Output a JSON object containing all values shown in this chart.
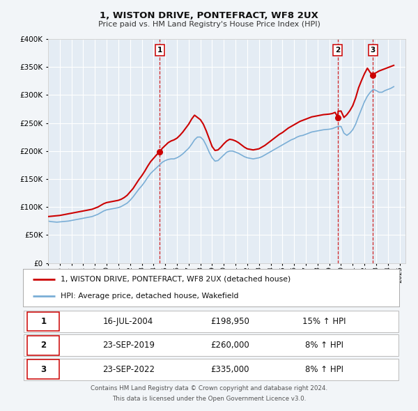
{
  "title": "1, WISTON DRIVE, PONTEFRACT, WF8 2UX",
  "subtitle": "Price paid vs. HM Land Registry's House Price Index (HPI)",
  "background_color": "#f2f5f8",
  "plot_bg_color": "#e4ecf4",
  "grid_color": "#ffffff",
  "ylim": [
    0,
    400000
  ],
  "yticks": [
    0,
    50000,
    100000,
    150000,
    200000,
    250000,
    300000,
    350000,
    400000
  ],
  "xlim_start": 1995.0,
  "xlim_end": 2025.5,
  "sale_color": "#cc0000",
  "hpi_color": "#7aaed6",
  "legend_label_sale": "1, WISTON DRIVE, PONTEFRACT, WF8 2UX (detached house)",
  "legend_label_hpi": "HPI: Average price, detached house, Wakefield",
  "transactions": [
    {
      "num": 1,
      "date_label": "16-JUL-2004",
      "price": 198950,
      "price_str": "£198,950",
      "pct": "15%",
      "x": 2004.54
    },
    {
      "num": 2,
      "date_label": "23-SEP-2019",
      "price": 260000,
      "price_str": "£260,000",
      "pct": "8%",
      "x": 2019.73
    },
    {
      "num": 3,
      "date_label": "23-SEP-2022",
      "price": 335000,
      "price_str": "£335,000",
      "pct": "8%",
      "x": 2022.73
    }
  ],
  "footer1": "Contains HM Land Registry data © Crown copyright and database right 2024.",
  "footer2": "This data is licensed under the Open Government Licence v3.0.",
  "hpi_data_x": [
    1995.0,
    1995.25,
    1995.5,
    1995.75,
    1996.0,
    1996.25,
    1996.5,
    1996.75,
    1997.0,
    1997.25,
    1997.5,
    1997.75,
    1998.0,
    1998.25,
    1998.5,
    1998.75,
    1999.0,
    1999.25,
    1999.5,
    1999.75,
    2000.0,
    2000.25,
    2000.5,
    2000.75,
    2001.0,
    2001.25,
    2001.5,
    2001.75,
    2002.0,
    2002.25,
    2002.5,
    2002.75,
    2003.0,
    2003.25,
    2003.5,
    2003.75,
    2004.0,
    2004.25,
    2004.5,
    2004.75,
    2005.0,
    2005.25,
    2005.5,
    2005.75,
    2006.0,
    2006.25,
    2006.5,
    2006.75,
    2007.0,
    2007.25,
    2007.5,
    2007.75,
    2008.0,
    2008.25,
    2008.5,
    2008.75,
    2009.0,
    2009.25,
    2009.5,
    2009.75,
    2010.0,
    2010.25,
    2010.5,
    2010.75,
    2011.0,
    2011.25,
    2011.5,
    2011.75,
    2012.0,
    2012.25,
    2012.5,
    2012.75,
    2013.0,
    2013.25,
    2013.5,
    2013.75,
    2014.0,
    2014.25,
    2014.5,
    2014.75,
    2015.0,
    2015.25,
    2015.5,
    2015.75,
    2016.0,
    2016.25,
    2016.5,
    2016.75,
    2017.0,
    2017.25,
    2017.5,
    2017.75,
    2018.0,
    2018.25,
    2018.5,
    2018.75,
    2019.0,
    2019.25,
    2019.5,
    2019.75,
    2020.0,
    2020.25,
    2020.5,
    2020.75,
    2021.0,
    2021.25,
    2021.5,
    2021.75,
    2022.0,
    2022.25,
    2022.5,
    2022.75,
    2023.0,
    2023.25,
    2023.5,
    2023.75,
    2024.0,
    2024.25,
    2024.5
  ],
  "hpi_data_y": [
    75000,
    74000,
    73500,
    73000,
    73500,
    74000,
    74500,
    75000,
    76000,
    77000,
    78000,
    79000,
    80000,
    81000,
    82000,
    83000,
    85000,
    87000,
    90000,
    93000,
    95000,
    96000,
    97000,
    98000,
    99000,
    101000,
    104000,
    107000,
    112000,
    118000,
    125000,
    132000,
    138000,
    145000,
    153000,
    160000,
    165000,
    170000,
    175000,
    180000,
    183000,
    185000,
    186000,
    186000,
    188000,
    191000,
    195000,
    200000,
    205000,
    212000,
    220000,
    225000,
    225000,
    220000,
    210000,
    198000,
    188000,
    182000,
    183000,
    188000,
    193000,
    198000,
    200000,
    200000,
    198000,
    196000,
    193000,
    190000,
    188000,
    187000,
    186000,
    187000,
    188000,
    190000,
    193000,
    196000,
    199000,
    202000,
    205000,
    208000,
    211000,
    214000,
    217000,
    220000,
    222000,
    225000,
    227000,
    228000,
    230000,
    232000,
    234000,
    235000,
    236000,
    237000,
    238000,
    238500,
    239000,
    240000,
    242000,
    244000,
    244000,
    232000,
    228000,
    232000,
    238000,
    248000,
    262000,
    275000,
    288000,
    298000,
    305000,
    310000,
    308000,
    305000,
    305000,
    308000,
    310000,
    312000,
    315000
  ],
  "sale_data_x": [
    1995.0,
    1995.25,
    1995.5,
    1995.75,
    1996.0,
    1996.25,
    1996.5,
    1996.75,
    1997.0,
    1997.25,
    1997.5,
    1997.75,
    1998.0,
    1998.25,
    1998.5,
    1998.75,
    1999.0,
    1999.25,
    1999.5,
    1999.75,
    2000.0,
    2000.25,
    2000.5,
    2000.75,
    2001.0,
    2001.25,
    2001.5,
    2001.75,
    2002.0,
    2002.25,
    2002.5,
    2002.75,
    2003.0,
    2003.25,
    2003.5,
    2003.75,
    2004.0,
    2004.25,
    2004.54,
    2004.75,
    2005.0,
    2005.25,
    2005.5,
    2005.75,
    2006.0,
    2006.25,
    2006.5,
    2006.75,
    2007.0,
    2007.25,
    2007.5,
    2007.75,
    2008.0,
    2008.25,
    2008.5,
    2008.75,
    2009.0,
    2009.25,
    2009.5,
    2009.75,
    2010.0,
    2010.25,
    2010.5,
    2010.75,
    2011.0,
    2011.25,
    2011.5,
    2011.75,
    2012.0,
    2012.25,
    2012.5,
    2012.75,
    2013.0,
    2013.25,
    2013.5,
    2013.75,
    2014.0,
    2014.25,
    2014.5,
    2014.75,
    2015.0,
    2015.25,
    2015.5,
    2015.75,
    2016.0,
    2016.25,
    2016.5,
    2016.75,
    2017.0,
    2017.25,
    2017.5,
    2017.75,
    2018.0,
    2018.25,
    2018.5,
    2018.75,
    2019.0,
    2019.25,
    2019.5,
    2019.73,
    2019.75,
    2020.0,
    2020.25,
    2020.5,
    2020.75,
    2021.0,
    2021.25,
    2021.5,
    2021.75,
    2022.0,
    2022.25,
    2022.5,
    2022.73,
    2022.75,
    2023.0,
    2023.25,
    2023.5,
    2023.75,
    2024.0,
    2024.25,
    2024.5
  ],
  "sale_data_y": [
    83000,
    83500,
    84000,
    84500,
    85000,
    86000,
    87000,
    88000,
    89000,
    90000,
    91000,
    92000,
    93000,
    94000,
    95000,
    96000,
    98000,
    100000,
    103000,
    106000,
    108000,
    109000,
    110000,
    111000,
    112000,
    114000,
    117000,
    121000,
    127000,
    133000,
    141000,
    149000,
    156000,
    164000,
    173000,
    181000,
    187000,
    193000,
    198950,
    205000,
    210000,
    215000,
    218000,
    220000,
    223000,
    228000,
    234000,
    241000,
    248000,
    257000,
    264000,
    260000,
    256000,
    248000,
    236000,
    222000,
    208000,
    201000,
    202000,
    207000,
    213000,
    218000,
    221000,
    220000,
    218000,
    215000,
    211000,
    207000,
    204000,
    203000,
    202000,
    203000,
    204000,
    207000,
    210000,
    214000,
    218000,
    222000,
    226000,
    230000,
    233000,
    237000,
    241000,
    244000,
    247000,
    250000,
    253000,
    255000,
    257000,
    259000,
    261000,
    262000,
    263000,
    264000,
    265000,
    265500,
    266000,
    267000,
    269000,
    260000,
    271000,
    271500,
    260000,
    265000,
    272000,
    281000,
    295000,
    313000,
    326000,
    338000,
    348000,
    340000,
    335000,
    337000,
    340000,
    343000,
    345000,
    347000,
    349000,
    351000,
    353000
  ]
}
